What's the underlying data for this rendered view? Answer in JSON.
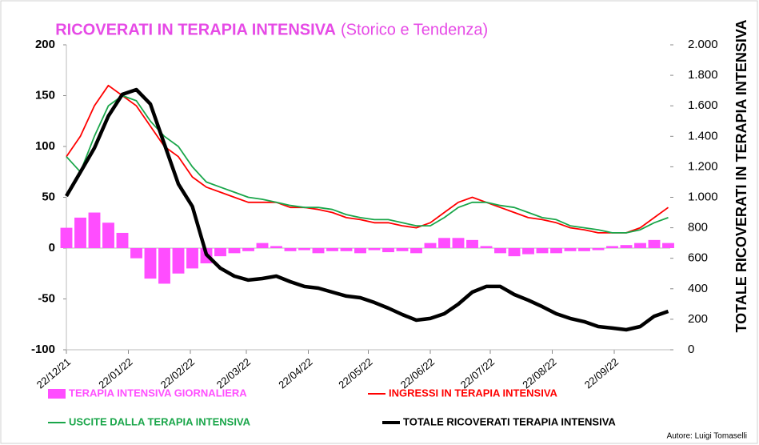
{
  "chart_data": {
    "type": "combo",
    "title": "RICOVERATI IN TERAPIA INTENSIVA",
    "subtitle": "(Storico e Tendenza)",
    "y2label": "TOTALE RICOVERATI IN TERAPIA INTENSIVA",
    "author": "Autore: Luigi Tomaselli",
    "x": [
      "22/12/21",
      "29/12/21",
      "05/01/22",
      "12/01/22",
      "19/01/22",
      "26/01/22",
      "02/02/22",
      "09/02/22",
      "16/02/22",
      "23/02/22",
      "02/03/22",
      "09/03/22",
      "16/03/22",
      "23/03/22",
      "30/03/22",
      "06/04/22",
      "13/04/22",
      "20/04/22",
      "27/04/22",
      "04/05/22",
      "11/05/22",
      "18/05/22",
      "25/05/22",
      "01/06/22",
      "08/06/22",
      "15/06/22",
      "22/06/22",
      "29/06/22",
      "06/07/22",
      "13/07/22",
      "20/07/22",
      "27/07/22",
      "03/08/22",
      "10/08/22",
      "17/08/22",
      "24/08/22",
      "31/08/22",
      "07/09/22",
      "14/09/22",
      "21/09/22",
      "28/09/22",
      "05/10/22",
      "12/10/22",
      "19/10/22"
    ],
    "xlim": [
      "22/12/21",
      "20/10/22"
    ],
    "xticks": [
      "22/12/21",
      "22/01/22",
      "22/02/22",
      "22/03/22",
      "22/04/22",
      "22/05/22",
      "22/06/22",
      "22/07/22",
      "22/08/22",
      "22/09/22"
    ],
    "ylim": [
      -100,
      200
    ],
    "yticks": [
      -100,
      -50,
      0,
      50,
      100,
      150,
      200
    ],
    "y2lim": [
      0,
      2000
    ],
    "y2ticks": [
      0,
      200,
      400,
      600,
      800,
      {
        "value": 1000,
        "label": "1.000"
      },
      {
        "value": 1200,
        "label": "1.200"
      },
      {
        "value": 1400,
        "label": "1.400"
      },
      {
        "value": 1600,
        "label": "1.600"
      },
      {
        "value": 1800,
        "label": "1.800"
      },
      {
        "value": 2000,
        "label": "2.000"
      }
    ],
    "series": [
      {
        "name": "TERAPIA INTENSIVA GIORNALIERA",
        "type": "bar",
        "color": "#ff4dff",
        "axis": "y",
        "values": [
          20,
          30,
          35,
          25,
          15,
          -10,
          -30,
          -35,
          -25,
          -20,
          -15,
          -8,
          -5,
          -3,
          5,
          2,
          -3,
          -2,
          -5,
          -3,
          -3,
          -5,
          -2,
          -4,
          -3,
          -5,
          5,
          10,
          10,
          8,
          2,
          -5,
          -8,
          -6,
          -5,
          -5,
          -3,
          -3,
          -2,
          2,
          3,
          5,
          8,
          5
        ]
      },
      {
        "name": "INGRESSI IN TERAPIA INTENSIVA",
        "type": "line",
        "color": "#ff0000",
        "axis": "y",
        "values": [
          90,
          110,
          140,
          160,
          150,
          140,
          120,
          100,
          90,
          70,
          60,
          55,
          50,
          45,
          45,
          45,
          40,
          40,
          38,
          35,
          30,
          28,
          25,
          25,
          22,
          20,
          25,
          35,
          45,
          50,
          45,
          40,
          35,
          30,
          28,
          25,
          20,
          18,
          15,
          15,
          15,
          20,
          30,
          40
        ]
      },
      {
        "name": "USCITE DALLA TERAPIA INTENSIVA",
        "type": "line",
        "color": "#1aa64a",
        "axis": "y",
        "values": [
          90,
          75,
          110,
          140,
          150,
          145,
          125,
          110,
          100,
          80,
          65,
          60,
          55,
          50,
          48,
          45,
          42,
          40,
          40,
          38,
          33,
          30,
          28,
          28,
          25,
          22,
          22,
          30,
          40,
          45,
          45,
          42,
          40,
          35,
          30,
          28,
          22,
          20,
          18,
          15,
          15,
          18,
          25,
          30
        ]
      },
      {
        "name": "TOTALE RICOVERATI TERAPIA INTENSIVA",
        "type": "line",
        "color": "#000000",
        "axis": "y2",
        "values": [
          1008,
          1165,
          1323,
          1533,
          1675,
          1706,
          1612,
          1349,
          1087,
          940,
          625,
          535,
          483,
          457,
          467,
          483,
          446,
          415,
          404,
          378,
          352,
          341,
          310,
          273,
          231,
          194,
          205,
          236,
          299,
          378,
          415,
          415,
          362,
          325,
          283,
          236,
          205,
          184,
          152,
          142,
          131,
          152,
          220,
          252
        ]
      }
    ]
  }
}
